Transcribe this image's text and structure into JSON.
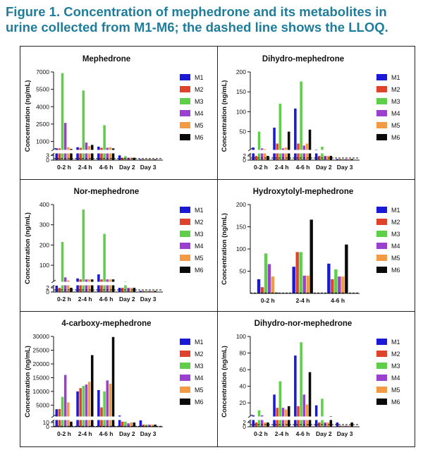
{
  "figure": {
    "title_line1": "Figure 1. Concentration of mephedrone and its metabolites in",
    "title_line2": "urine collected from M1-M6; the dashed line shows the LLOQ."
  },
  "colors": {
    "M1": "#1a1ad6",
    "M2": "#e0432b",
    "M3": "#5fcf4a",
    "M4": "#9a3fd0",
    "M5": "#f39a45",
    "M6": "#0a0a0a",
    "title": "#1f7d9c"
  },
  "chart_data": [
    {
      "type": "bar",
      "title": "Mephedrone",
      "ylabel": "Concentration (ng/mL)",
      "categories": [
        "0-2 h",
        "2-4 h",
        "4-6 h",
        "Day 2",
        "Day 3"
      ],
      "yticks_upper": [
        "1000",
        "2500",
        "4000",
        "5500",
        "7000"
      ],
      "yticks_lower": [
        "0",
        "3"
      ],
      "upper_range": [
        300,
        7000
      ],
      "lower_range": [
        0,
        4
      ],
      "lloq": 1,
      "legend": [
        "M1",
        "M2",
        "M3",
        "M4",
        "M5",
        "M6"
      ],
      "series": [
        {
          "name": "M1",
          "values": [
            400,
            500,
            550,
            3,
            0.5
          ]
        },
        {
          "name": "M2",
          "values": [
            400,
            450,
            450,
            1.5,
            0.5
          ]
        },
        {
          "name": "M3",
          "values": [
            6900,
            5400,
            2400,
            2.5,
            0.5
          ]
        },
        {
          "name": "M4",
          "values": [
            2600,
            900,
            450,
            1.5,
            0.5
          ]
        },
        {
          "name": "M5",
          "values": [
            500,
            600,
            500,
            1.5,
            0.5
          ]
        },
        {
          "name": "M6",
          "values": [
            350,
            700,
            400,
            1.5,
            0.5
          ]
        }
      ]
    },
    {
      "type": "bar",
      "title": "Dihydro-mephedrone",
      "ylabel": "Concentration (ng/mL)",
      "categories": [
        "0-2 h",
        "2-4 h",
        "4-6 h",
        "Day 2",
        "Day 3"
      ],
      "yticks_upper": [
        "50",
        "100",
        "150",
        "200"
      ],
      "yticks_lower": [
        "0",
        "2"
      ],
      "upper_range": [
        5,
        200
      ],
      "lower_range": [
        0,
        3
      ],
      "lloq": 1,
      "legend": [
        "M1",
        "M2",
        "M3",
        "M4",
        "M5",
        "M6"
      ],
      "series": [
        {
          "name": "M1",
          "values": [
            10,
            60,
            108,
            5,
            0.5
          ]
        },
        {
          "name": "M2",
          "values": [
            2,
            20,
            20,
            2,
            0.5
          ]
        },
        {
          "name": "M3",
          "values": [
            50,
            120,
            176,
            12,
            0.5
          ]
        },
        {
          "name": "M4",
          "values": [
            8,
            8,
            15,
            2,
            0.5
          ]
        },
        {
          "name": "M5",
          "values": [
            6,
            10,
            20,
            2,
            0.5
          ]
        },
        {
          "name": "M6",
          "values": [
            2,
            50,
            55,
            2,
            0.5
          ]
        }
      ]
    },
    {
      "type": "bar",
      "title": "Nor-mephedrone",
      "ylabel": "Concentration (ng/mL)",
      "categories": [
        "0-2 h",
        "2-4 h",
        "4-6 h",
        "Day 2",
        "Day 3"
      ],
      "yticks_upper": [
        "100",
        "200",
        "300",
        "400"
      ],
      "yticks_lower": [
        "0",
        "2"
      ],
      "upper_range": [
        20,
        400
      ],
      "lower_range": [
        0,
        3
      ],
      "lloq": 1,
      "legend": [
        "M1",
        "M2",
        "M3",
        "M4",
        "M5",
        "M6"
      ],
      "series": [
        {
          "name": "M1",
          "values": [
            3,
            35,
            55,
            2,
            0.5
          ]
        },
        {
          "name": "M2",
          "values": [
            2,
            30,
            30,
            2,
            0.5
          ]
        },
        {
          "name": "M3",
          "values": [
            215,
            375,
            255,
            5,
            0.5
          ]
        },
        {
          "name": "M4",
          "values": [
            40,
            30,
            30,
            2,
            0.5
          ]
        },
        {
          "name": "M5",
          "values": [
            25,
            30,
            30,
            2,
            0.5
          ]
        },
        {
          "name": "M6",
          "values": [
            2,
            30,
            30,
            2,
            0.5
          ]
        }
      ]
    },
    {
      "type": "bar",
      "title": "Hydroxytolyl-mephedrone",
      "ylabel": "Concentration (ng/mL)",
      "categories": [
        "0-2 h",
        "2-4 h",
        "4-6 h"
      ],
      "yticks": [
        "50",
        "100",
        "150",
        "200"
      ],
      "ylim": [
        0,
        200
      ],
      "lloq": 1,
      "legend": [
        "M1",
        "M2",
        "M3",
        "M4",
        "M5",
        "M6"
      ],
      "series": [
        {
          "name": "M1",
          "values": [
            32,
            60,
            67
          ]
        },
        {
          "name": "M2",
          "values": [
            14,
            93,
            32
          ]
        },
        {
          "name": "M3",
          "values": [
            90,
            93,
            54
          ]
        },
        {
          "name": "M4",
          "values": [
            66,
            40,
            38
          ]
        },
        {
          "name": "M5",
          "values": [
            38,
            40,
            38
          ]
        },
        {
          "name": "M6",
          "values": [
            2,
            166,
            110
          ]
        }
      ]
    },
    {
      "type": "bar",
      "title": "4-carboxy-mephedrone",
      "ylabel": "Concentration (ng/mL)",
      "categories": [
        "0-2 h",
        "2-4 h",
        "4-6 h",
        "Day 2",
        "Day 3"
      ],
      "yticks_upper": [
        "5000",
        "10000",
        "15000",
        "20000",
        "25000",
        "30000"
      ],
      "yticks_lower": [
        "0",
        "10"
      ],
      "upper_range": [
        1000,
        30000
      ],
      "lower_range": [
        0,
        15
      ],
      "lloq": 1,
      "legend": [
        "M1",
        "M2",
        "M3",
        "M4",
        "M5",
        "M6"
      ],
      "series": [
        {
          "name": "M1",
          "values": [
            3500,
            10000,
            10500,
            1200,
            15
          ]
        },
        {
          "name": "M2",
          "values": [
            3600,
            11200,
            4200,
            12,
            5
          ]
        },
        {
          "name": "M3",
          "values": [
            8000,
            12000,
            10000,
            12,
            5
          ]
        },
        {
          "name": "M4",
          "values": [
            16000,
            12500,
            14000,
            8,
            5
          ]
        },
        {
          "name": "M5",
          "values": [
            6000,
            13500,
            12800,
            10,
            5
          ]
        },
        {
          "name": "M6",
          "values": [
            12,
            23200,
            29800,
            10,
            5
          ]
        }
      ]
    },
    {
      "type": "bar",
      "title": "Dihydro-nor-mephedrone",
      "ylabel": "Concentration (ng/mL)",
      "categories": [
        "0-2 h",
        "2-4 h",
        "4-6 h",
        "Day 2",
        "Day 3"
      ],
      "yticks_upper": [
        "20",
        "40",
        "60",
        "80",
        "100"
      ],
      "yticks_lower": [
        "0",
        "2"
      ],
      "upper_range": [
        4,
        100
      ],
      "lower_range": [
        0,
        3
      ],
      "lloq": 1,
      "legend": [
        "M1",
        "M2",
        "M3",
        "M4",
        "M5",
        "M6"
      ],
      "series": [
        {
          "name": "M1",
          "values": [
            5,
            30,
            77,
            17,
            2
          ]
        },
        {
          "name": "M2",
          "values": [
            2,
            14,
            16,
            2,
            0.5
          ]
        },
        {
          "name": "M3",
          "values": [
            11,
            46,
            93,
            25,
            0.5
          ]
        },
        {
          "name": "M4",
          "values": [
            5,
            14,
            30,
            2,
            0.5
          ]
        },
        {
          "name": "M5",
          "values": [
            2,
            12,
            18,
            2,
            0.5
          ]
        },
        {
          "name": "M6",
          "values": [
            2,
            16,
            57,
            4,
            2
          ]
        }
      ]
    }
  ]
}
